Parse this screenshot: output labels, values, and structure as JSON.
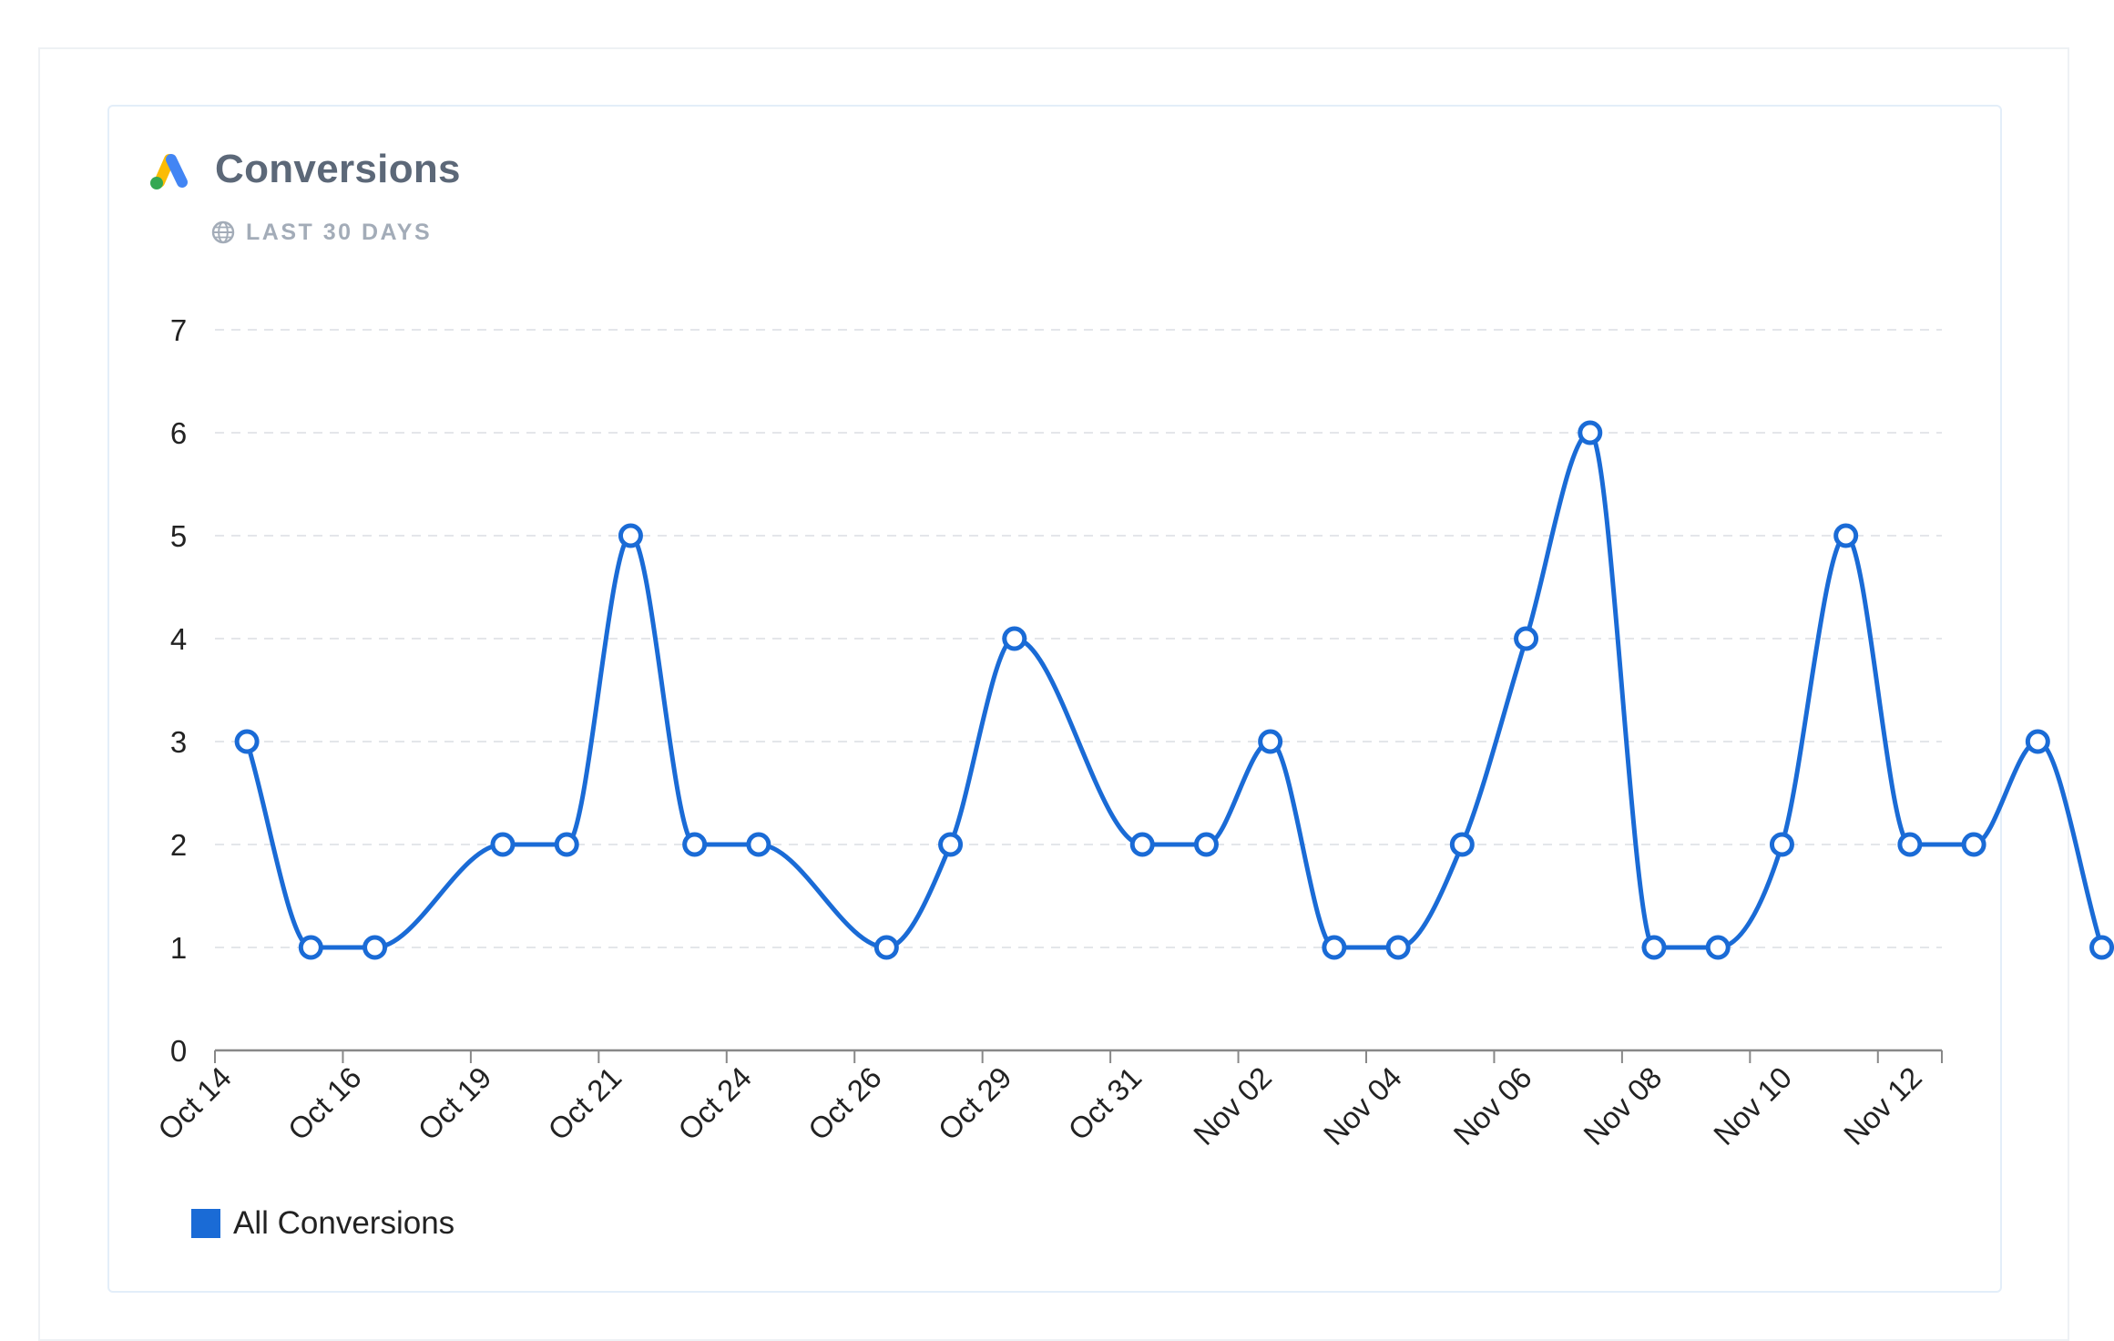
{
  "widget": {
    "title": "Conversions",
    "period": "LAST 30 DAYS",
    "logo_icon": "google-ads-logo-icon",
    "period_icon": "globe-icon"
  },
  "colors": {
    "series": "#1a6bd6",
    "title": "#5c6878",
    "period": "#a3acb8",
    "grid": "#e4e6ea",
    "axis": "#888888",
    "card_border": "#e3eef9"
  },
  "legend": {
    "label": "All Conversions"
  },
  "chart_data": {
    "type": "line",
    "title": "",
    "xlabel": "",
    "ylabel": "",
    "ylim": [
      0,
      7
    ],
    "yticks": [
      0,
      1,
      2,
      3,
      4,
      5,
      6,
      7
    ],
    "grid": true,
    "legend_position": "bottom-left",
    "x_tick_labels": [
      "Oct 14",
      "Oct 16",
      "Oct 19",
      "Oct 21",
      "Oct 24",
      "Oct 26",
      "Oct 29",
      "Oct 31",
      "Nov 02",
      "Nov 04",
      "Nov 06",
      "Nov 08",
      "Nov 10",
      "Nov 12"
    ],
    "x": [
      "Oct 14",
      "Oct 15",
      "Oct 16",
      "Oct 18",
      "Oct 19",
      "Oct 20",
      "Oct 21",
      "Oct 22",
      "Oct 24",
      "Oct 25",
      "Oct 26",
      "Oct 28",
      "Oct 29",
      "Oct 30",
      "Oct 31",
      "Nov 01",
      "Nov 02",
      "Nov 03",
      "Nov 04",
      "Nov 05",
      "Nov 06",
      "Nov 07",
      "Nov 08",
      "Nov 09",
      "Nov 10",
      "Nov 11",
      "Nov 12"
    ],
    "series": [
      {
        "name": "All Conversions",
        "values": [
          3,
          1,
          1,
          2,
          2,
          5,
          2,
          2,
          1,
          2,
          4,
          2,
          2,
          3,
          1,
          1,
          2,
          4,
          6,
          1,
          1,
          2,
          5,
          2,
          2,
          3,
          1
        ]
      }
    ]
  }
}
